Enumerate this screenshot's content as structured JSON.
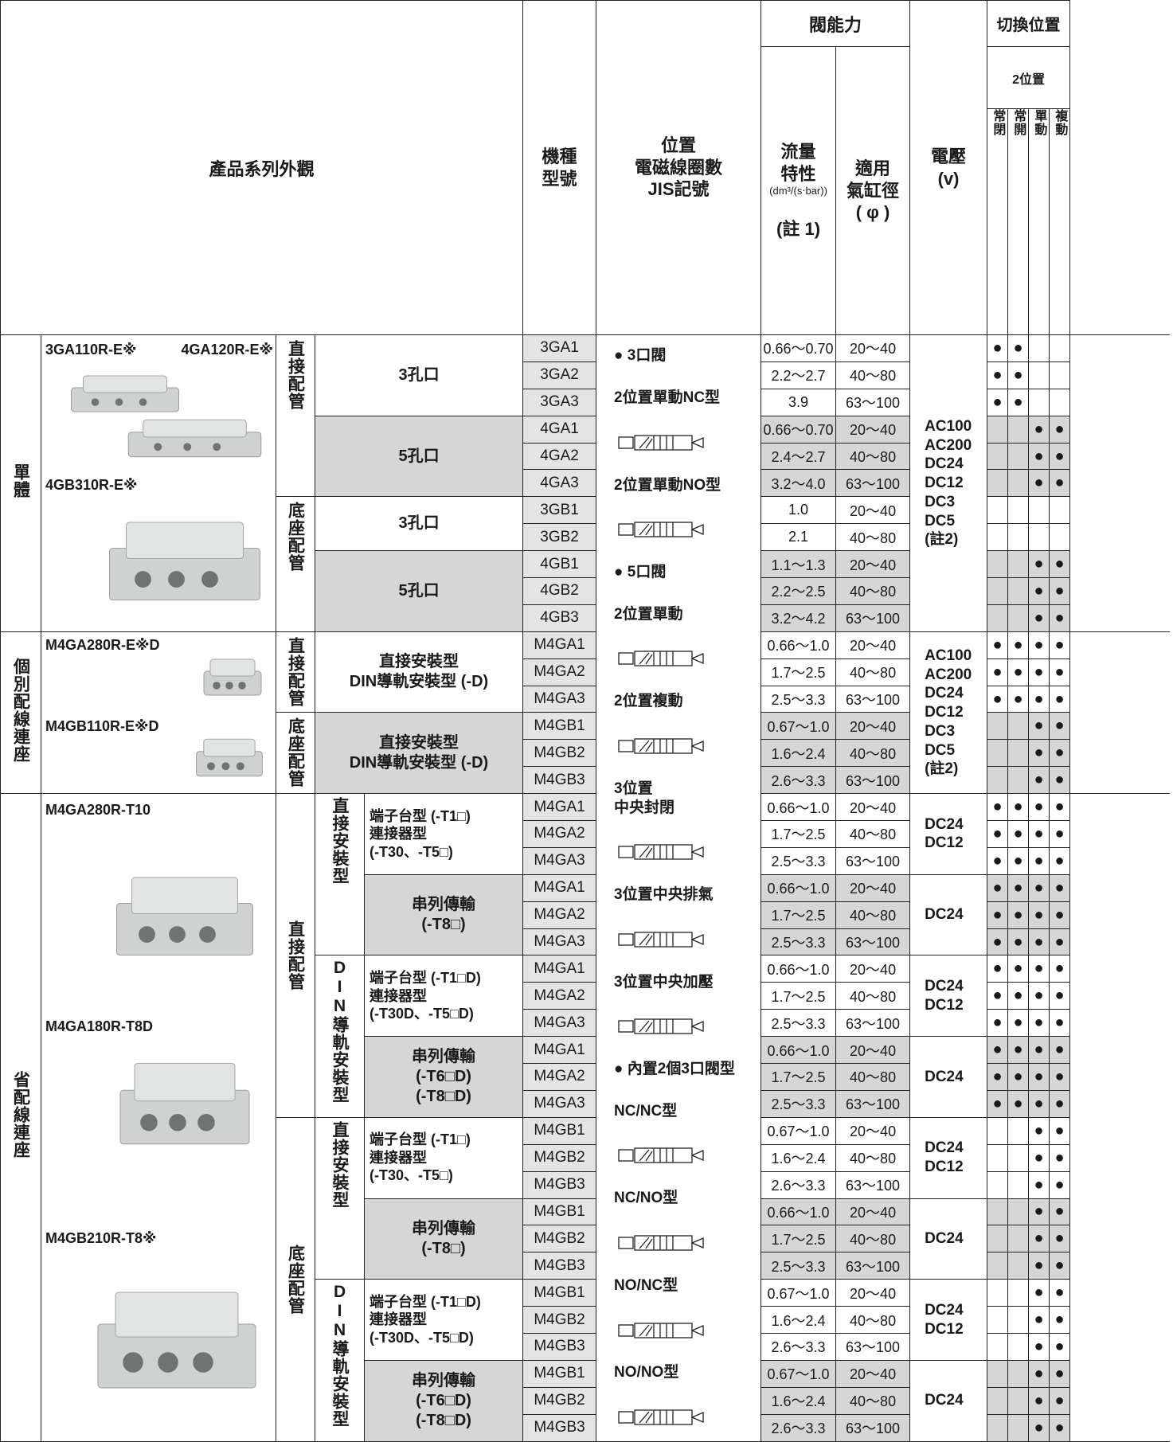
{
  "header": {
    "series_appearance": "產品系列外觀",
    "model": "機種\n型號",
    "position": "位置\n電磁線圈數\nJIS記號",
    "valve_capacity": "閥能力",
    "flow": "流量\n特性",
    "flow_unit": "(dm³/(s‧bar))",
    "flow_note": "(註 1)",
    "bore": "適用\n氣缸徑\n( φ )",
    "voltage": "電壓\n(v)",
    "switching": "切換位置",
    "two_position": "2位置",
    "switch_columns": [
      "常閉",
      "常開",
      "單動",
      "複動"
    ]
  },
  "position_items": [
    "● 3口閥",
    "2位置單動NC型",
    "2位置單動NO型",
    "● 5口閥",
    "2位置單動",
    "2位置複動",
    "3位置\n中央封閉",
    "3位置中央排氣",
    "3位置中央加壓",
    "● 內置2個3口閥型",
    "NC/NC型",
    "NC/NO型",
    "NO/NC型",
    "NO/NO型"
  ],
  "sections": [
    {
      "label": "單體",
      "images": [
        "3GA110R-E※",
        "4GA120R-E※",
        "4GB310R-E※"
      ],
      "voltage": "AC100\nAC200\nDC24\nDC12\nDC3\nDC5\n(註2)",
      "mounts": [
        {
          "label": "直接配管",
          "groups": [
            {
              "port": "3孔口",
              "rows": [
                {
                  "model": "3GA1",
                  "flow": "0.66～0.70",
                  "bore": "20～40",
                  "switch": [
                    "●",
                    "●",
                    null,
                    null
                  ]
                },
                {
                  "model": "3GA2",
                  "flow": "2.2～2.7",
                  "bore": "40～80",
                  "switch": [
                    "●",
                    "●",
                    null,
                    null
                  ]
                },
                {
                  "model": "3GA3",
                  "flow": "3.9",
                  "bore": "63～100",
                  "switch": [
                    "●",
                    "●",
                    null,
                    null
                  ]
                }
              ]
            },
            {
              "port": "5孔口",
              "rows": [
                {
                  "model": "4GA1",
                  "flow": "0.66～0.70",
                  "bore": "20～40",
                  "switch": [
                    null,
                    null,
                    "●",
                    "●"
                  ]
                },
                {
                  "model": "4GA2",
                  "flow": "2.4～2.7",
                  "bore": "40～80",
                  "switch": [
                    null,
                    null,
                    "●",
                    "●"
                  ]
                },
                {
                  "model": "4GA3",
                  "flow": "3.2～4.0",
                  "bore": "63～100",
                  "switch": [
                    null,
                    null,
                    "●",
                    "●"
                  ]
                }
              ]
            }
          ]
        },
        {
          "label": "底座配管",
          "groups": [
            {
              "port": "3孔口",
              "rows": [
                {
                  "model": "3GB1",
                  "flow": "1.0",
                  "bore": "20～40",
                  "switch": [
                    null,
                    null,
                    null,
                    null
                  ]
                },
                {
                  "model": "3GB2",
                  "flow": "2.1",
                  "bore": "40～80",
                  "switch": [
                    null,
                    null,
                    null,
                    null
                  ]
                }
              ]
            },
            {
              "port": "5孔口",
              "rows": [
                {
                  "model": "4GB1",
                  "flow": "1.1～1.3",
                  "bore": "20～40",
                  "switch": [
                    null,
                    null,
                    "●",
                    "●"
                  ]
                },
                {
                  "model": "4GB2",
                  "flow": "2.2～2.5",
                  "bore": "40～80",
                  "switch": [
                    null,
                    null,
                    "●",
                    "●"
                  ]
                },
                {
                  "model": "4GB3",
                  "flow": "3.2～4.2",
                  "bore": "63～100",
                  "switch": [
                    null,
                    null,
                    "●",
                    "●"
                  ]
                }
              ]
            }
          ]
        }
      ]
    },
    {
      "label": "個別配線連座",
      "images": [
        "M4GA280R-E※D",
        "M4GB110R-E※D"
      ],
      "voltage": "AC100\nAC200\nDC24\nDC12\nDC3\nDC5\n(註2)",
      "mounts": [
        {
          "label": "直接配管",
          "groups": [
            {
              "port": "直接安裝型\nDIN導軌安裝型 (-D)",
              "rows": [
                {
                  "model": "M4GA1",
                  "flow": "0.66～1.0",
                  "bore": "20～40",
                  "switch": [
                    "●",
                    "●",
                    "●",
                    "●"
                  ]
                },
                {
                  "model": "M4GA2",
                  "flow": "1.7～2.5",
                  "bore": "40～80",
                  "switch": [
                    "●",
                    "●",
                    "●",
                    "●"
                  ]
                },
                {
                  "model": "M4GA3",
                  "flow": "2.5～3.3",
                  "bore": "63～100",
                  "switch": [
                    "●",
                    "●",
                    "●",
                    "●"
                  ]
                }
              ]
            }
          ]
        },
        {
          "label": "底座配管",
          "groups": [
            {
              "port": "直接安裝型\nDIN導軌安裝型 (-D)",
              "rows": [
                {
                  "model": "M4GB1",
                  "flow": "0.67～1.0",
                  "bore": "20～40",
                  "switch": [
                    null,
                    null,
                    "●",
                    "●"
                  ]
                },
                {
                  "model": "M4GB2",
                  "flow": "1.6～2.4",
                  "bore": "40～80",
                  "switch": [
                    null,
                    null,
                    "●",
                    "●"
                  ]
                },
                {
                  "model": "M4GB3",
                  "flow": "2.6～3.3",
                  "bore": "63～100",
                  "switch": [
                    null,
                    null,
                    "●",
                    "●"
                  ]
                }
              ]
            }
          ]
        }
      ]
    },
    {
      "label": "省配線連座",
      "images": [
        "M4GA280R-T10",
        "M4GA180R-T8D",
        "M4GB210R-T8※"
      ],
      "mounts": [
        {
          "label": "直接配管",
          "subs": [
            {
              "label": "直接安裝型",
              "groups": [
                {
                  "port": "端子台型 (-T1□)\n連接器型\n(-T30、-T5□)",
                  "voltage": "DC24\nDC12",
                  "rows": [
                    {
                      "model": "M4GA1",
                      "flow": "0.66～1.0",
                      "bore": "20～40",
                      "switch": [
                        "●",
                        "●",
                        "●",
                        "●"
                      ]
                    },
                    {
                      "model": "M4GA2",
                      "flow": "1.7～2.5",
                      "bore": "40～80",
                      "switch": [
                        "●",
                        "●",
                        "●",
                        "●"
                      ]
                    },
                    {
                      "model": "M4GA3",
                      "flow": "2.5～3.3",
                      "bore": "63～100",
                      "switch": [
                        "●",
                        "●",
                        "●",
                        "●"
                      ]
                    }
                  ]
                },
                {
                  "port": "串列傳輸\n(-T8□)",
                  "voltage": "DC24",
                  "rows": [
                    {
                      "model": "M4GA1",
                      "flow": "0.66～1.0",
                      "bore": "20～40",
                      "switch": [
                        "●",
                        "●",
                        "●",
                        "●"
                      ]
                    },
                    {
                      "model": "M4GA2",
                      "flow": "1.7～2.5",
                      "bore": "40～80",
                      "switch": [
                        "●",
                        "●",
                        "●",
                        "●"
                      ]
                    },
                    {
                      "model": "M4GA3",
                      "flow": "2.5～3.3",
                      "bore": "63～100",
                      "switch": [
                        "●",
                        "●",
                        "●",
                        "●"
                      ]
                    }
                  ]
                }
              ]
            },
            {
              "label": "DIN導軌安裝型",
              "groups": [
                {
                  "port": "端子台型 (-T1□D)\n連接器型\n(-T30D、-T5□D)",
                  "voltage": "DC24\nDC12",
                  "rows": [
                    {
                      "model": "M4GA1",
                      "flow": "0.66～1.0",
                      "bore": "20～40",
                      "switch": [
                        "●",
                        "●",
                        "●",
                        "●"
                      ]
                    },
                    {
                      "model": "M4GA2",
                      "flow": "1.7～2.5",
                      "bore": "40～80",
                      "switch": [
                        "●",
                        "●",
                        "●",
                        "●"
                      ]
                    },
                    {
                      "model": "M4GA3",
                      "flow": "2.5～3.3",
                      "bore": "63～100",
                      "switch": [
                        "●",
                        "●",
                        "●",
                        "●"
                      ]
                    }
                  ]
                },
                {
                  "port": "串列傳輸\n(-T6□D)\n(-T8□D)",
                  "voltage": "DC24",
                  "rows": [
                    {
                      "model": "M4GA1",
                      "flow": "0.66～1.0",
                      "bore": "20～40",
                      "switch": [
                        "●",
                        "●",
                        "●",
                        "●"
                      ]
                    },
                    {
                      "model": "M4GA2",
                      "flow": "1.7～2.5",
                      "bore": "40～80",
                      "switch": [
                        "●",
                        "●",
                        "●",
                        "●"
                      ]
                    },
                    {
                      "model": "M4GA3",
                      "flow": "2.5～3.3",
                      "bore": "63～100",
                      "switch": [
                        "●",
                        "●",
                        "●",
                        "●"
                      ]
                    }
                  ]
                }
              ]
            }
          ]
        },
        {
          "label": "底座配管",
          "subs": [
            {
              "label": "直接安裝型",
              "groups": [
                {
                  "port": "端子台型 (-T1□)\n連接器型\n(-T30、-T5□)",
                  "voltage": "DC24\nDC12",
                  "rows": [
                    {
                      "model": "M4GB1",
                      "flow": "0.67～1.0",
                      "bore": "20～40",
                      "switch": [
                        null,
                        null,
                        "●",
                        "●"
                      ]
                    },
                    {
                      "model": "M4GB2",
                      "flow": "1.6～2.4",
                      "bore": "40～80",
                      "switch": [
                        null,
                        null,
                        "●",
                        "●"
                      ]
                    },
                    {
                      "model": "M4GB3",
                      "flow": "2.6～3.3",
                      "bore": "63～100",
                      "switch": [
                        null,
                        null,
                        "●",
                        "●"
                      ]
                    }
                  ]
                },
                {
                  "port": "串列傳輸\n(-T8□)",
                  "voltage": "DC24",
                  "rows": [
                    {
                      "model": "M4GB1",
                      "flow": "0.66～1.0",
                      "bore": "20～40",
                      "switch": [
                        null,
                        null,
                        "●",
                        "●"
                      ]
                    },
                    {
                      "model": "M4GB2",
                      "flow": "1.7～2.5",
                      "bore": "40～80",
                      "switch": [
                        null,
                        null,
                        "●",
                        "●"
                      ]
                    },
                    {
                      "model": "M4GB3",
                      "flow": "2.5～3.3",
                      "bore": "63～100",
                      "switch": [
                        null,
                        null,
                        "●",
                        "●"
                      ]
                    }
                  ]
                }
              ]
            },
            {
              "label": "DIN導軌安裝型",
              "groups": [
                {
                  "port": "端子台型 (-T1□D)\n連接器型\n(-T30D、-T5□D)",
                  "voltage": "DC24\nDC12",
                  "rows": [
                    {
                      "model": "M4GB1",
                      "flow": "0.67～1.0",
                      "bore": "20～40",
                      "switch": [
                        null,
                        null,
                        "●",
                        "●"
                      ]
                    },
                    {
                      "model": "M4GB2",
                      "flow": "1.6～2.4",
                      "bore": "40～80",
                      "switch": [
                        null,
                        null,
                        "●",
                        "●"
                      ]
                    },
                    {
                      "model": "M4GB3",
                      "flow": "2.6～3.3",
                      "bore": "63～100",
                      "switch": [
                        null,
                        null,
                        "●",
                        "●"
                      ]
                    }
                  ]
                },
                {
                  "port": "串列傳輸\n(-T6□D)\n(-T8□D)",
                  "voltage": "DC24",
                  "rows": [
                    {
                      "model": "M4GB1",
                      "flow": "0.67～1.0",
                      "bore": "20～40",
                      "switch": [
                        null,
                        null,
                        "●",
                        "●"
                      ]
                    },
                    {
                      "model": "M4GB2",
                      "flow": "1.6～2.4",
                      "bore": "40～80",
                      "switch": [
                        null,
                        null,
                        "●",
                        "●"
                      ]
                    },
                    {
                      "model": "M4GB3",
                      "flow": "2.6～3.3",
                      "bore": "63～100",
                      "switch": [
                        null,
                        null,
                        "●",
                        "●"
                      ]
                    }
                  ]
                }
              ]
            }
          ]
        }
      ]
    }
  ]
}
